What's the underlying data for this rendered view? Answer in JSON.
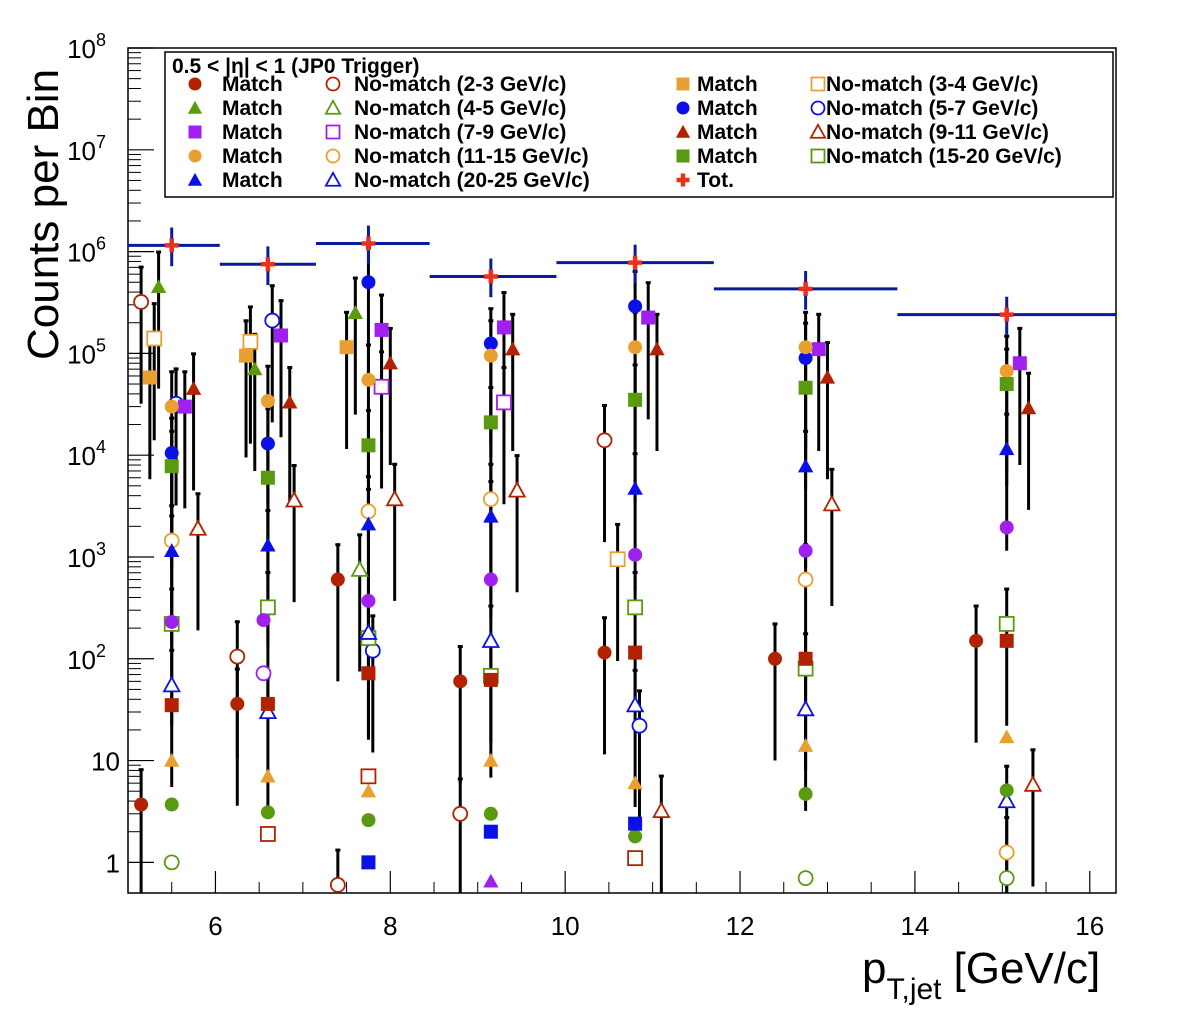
{
  "chart_data": {
    "type": "scatter",
    "title": "0.5 < |η| < 1 (JP0 Trigger)",
    "xlabel": "p",
    "xlabel_sub": "T,jet",
    "xlabel_unit": "[GeV/c]",
    "ylabel": "Counts per Bin",
    "xlim": [
      5.0,
      16.3
    ],
    "ylim": [
      0.5,
      100000000
    ],
    "log_y": true,
    "grid": false,
    "legend_position": "top",
    "x_ticks": [
      6,
      8,
      10,
      12,
      14,
      16
    ],
    "y_ticks": [
      {
        "value": 1,
        "base": "1",
        "exp": ""
      },
      {
        "value": 10,
        "base": "10",
        "exp": ""
      },
      {
        "value": 100,
        "base": "10",
        "exp": "2"
      },
      {
        "value": 1000,
        "base": "10",
        "exp": "3"
      },
      {
        "value": 10000,
        "base": "10",
        "exp": "4"
      },
      {
        "value": 100000,
        "base": "10",
        "exp": "5"
      },
      {
        "value": 1000000,
        "base": "10",
        "exp": "6"
      },
      {
        "value": 10000000,
        "base": "10",
        "exp": "7"
      },
      {
        "value": 100000000,
        "base": "10",
        "exp": "8"
      }
    ],
    "bin_centers": [
      5.5,
      6.6,
      7.75,
      9.15,
      10.8,
      12.75,
      15.05
    ],
    "bin_edges": [
      [
        5.0,
        6.05
      ],
      [
        6.05,
        7.15
      ],
      [
        7.15,
        8.45
      ],
      [
        8.45,
        9.9
      ],
      [
        9.9,
        11.7
      ],
      [
        11.7,
        13.8
      ],
      [
        13.8,
        16.3
      ]
    ],
    "series": [
      {
        "name": "Match",
        "range": "2-3",
        "color": "#b22200",
        "marker": "circle",
        "filled": true,
        "offset": -0.35,
        "values": [
          3.7,
          36,
          600,
          60,
          115,
          100,
          150
        ]
      },
      {
        "name": "No-match (2-3 GeV/c)",
        "color": "#b22200",
        "marker": "circle",
        "filled": false,
        "offset": -0.35,
        "values": [
          320000,
          105,
          0.6,
          3,
          14000,
          0,
          0
        ]
      },
      {
        "name": "Match",
        "range": "3-4",
        "color": "#e8a030",
        "marker": "square",
        "filled": true,
        "offset": -0.25,
        "values": [
          58000,
          95000,
          115000,
          0,
          0,
          0,
          0
        ]
      },
      {
        "name": "No-match (3-4 GeV/c)",
        "color": "#e8a030",
        "marker": "square",
        "filled": false,
        "offset": -0.2,
        "values": [
          140000,
          130000,
          0,
          0,
          950,
          0,
          0
        ]
      },
      {
        "name": "Match",
        "range": "4-5",
        "color": "#5a9a10",
        "marker": "triangle",
        "filled": true,
        "offset": -0.15,
        "values": [
          450000,
          70000,
          250000,
          0,
          0,
          0,
          0
        ]
      },
      {
        "name": "No-match (4-5 GeV/c)",
        "color": "#5a9a10",
        "marker": "triangle",
        "filled": false,
        "offset": -0.1,
        "values": [
          0,
          0,
          750,
          0,
          0,
          0,
          0
        ]
      },
      {
        "name": "Match",
        "range": "5-7",
        "color": "#0a10e8",
        "marker": "circle",
        "filled": true,
        "offset": 0.0,
        "values": [
          10500,
          13000,
          500000,
          125000,
          290000,
          90000,
          0
        ]
      },
      {
        "name": "No-match (5-7 GeV/c)",
        "color": "#0a10e8",
        "marker": "circle",
        "filled": false,
        "offset": 0.05,
        "values": [
          32000,
          210000,
          120,
          0,
          22,
          0,
          0
        ]
      },
      {
        "name": "Match",
        "range": "7-9",
        "color": "#a020f0",
        "marker": "square",
        "filled": true,
        "offset": 0.15,
        "values": [
          30000,
          150000,
          170000,
          180000,
          225000,
          110000,
          80000
        ]
      },
      {
        "name": "No-match (7-9 GeV/c)",
        "color": "#a020f0",
        "marker": "square",
        "filled": false,
        "offset": 0.15,
        "values": [
          0,
          0,
          47000,
          33000,
          0,
          0,
          0
        ]
      },
      {
        "name": "Match",
        "range": "9-11",
        "color": "#b22200",
        "marker": "triangle",
        "filled": true,
        "offset": 0.25,
        "values": [
          45000,
          33000,
          80000,
          110000,
          110000,
          58000,
          29000
        ]
      },
      {
        "name": "No-match (9-11 GeV/c)",
        "color": "#b22200",
        "marker": "triangle",
        "filled": false,
        "offset": 0.3,
        "values": [
          1900,
          3600,
          3700,
          4500,
          3.2,
          3300,
          5.8
        ]
      },
      {
        "name": "Match",
        "range": "11-15",
        "color": "#e8a030",
        "marker": "circle",
        "filled": true,
        "offset": 0.0,
        "values": [
          30000,
          34000,
          55000,
          95000,
          115000,
          115000,
          67000
        ]
      },
      {
        "name": "No-match (11-15 GeV/c)",
        "color": "#e8a030",
        "marker": "circle",
        "filled": false,
        "offset": 0.0,
        "values": [
          1450,
          0,
          2800,
          3700,
          0,
          600,
          1.25
        ]
      },
      {
        "name": "Match",
        "range": "15-20",
        "color": "#5a9a10",
        "marker": "square",
        "filled": true,
        "offset": 0.0,
        "values": [
          7800,
          6000,
          12500,
          21000,
          35000,
          46000,
          50000
        ]
      },
      {
        "name": "No-match (15-20 GeV/c)",
        "color": "#5a9a10",
        "marker": "square",
        "filled": false,
        "offset": 0.0,
        "values": [
          220,
          320,
          160,
          68,
          320,
          80,
          220
        ]
      },
      {
        "name": "Match",
        "range": "20-25",
        "color": "#0a10e8",
        "marker": "triangle",
        "filled": true,
        "offset": 0.0,
        "values": [
          1150,
          1300,
          2100,
          2500,
          4700,
          7800,
          11500
        ]
      },
      {
        "name": "No-match (20-25 GeV/c)",
        "color": "#0a10e8",
        "marker": "triangle",
        "filled": false,
        "offset": 0.0,
        "values": [
          55,
          30,
          180,
          150,
          35,
          32,
          4
        ]
      },
      {
        "name": "Tot.",
        "color": "#e8301a",
        "marker": "cross",
        "filled": true,
        "offset": 0.0,
        "values": [
          1150000,
          750000,
          1200000,
          570000,
          780000,
          430000,
          240000
        ]
      }
    ],
    "extra_points": [
      {
        "color": "#a020f0",
        "marker": "circle",
        "filled": true,
        "x": [
          5.5,
          6.55,
          7.75,
          9.15,
          10.8,
          12.75,
          15.05
        ],
        "values": [
          230,
          240,
          370,
          600,
          1050,
          1150,
          1950
        ]
      },
      {
        "color": "#a020f0",
        "marker": "circle",
        "filled": false,
        "x": [
          6.55
        ],
        "values": [
          72
        ]
      },
      {
        "color": "#e8a030",
        "marker": "triangle",
        "filled": true,
        "x": [
          5.5,
          6.6,
          7.75,
          9.15,
          10.8,
          12.75,
          15.05
        ],
        "values": [
          10,
          7,
          5,
          10,
          6,
          14,
          17
        ]
      },
      {
        "color": "#5a9a10",
        "marker": "circle",
        "filled": true,
        "x": [
          5.5,
          6.6,
          7.75,
          9.15,
          10.8,
          12.75,
          15.05
        ],
        "values": [
          3.7,
          3.1,
          2.6,
          3.0,
          1.8,
          4.7,
          5.1
        ]
      },
      {
        "color": "#5a9a10",
        "marker": "circle",
        "filled": false,
        "x": [
          5.5,
          12.75,
          15.05
        ],
        "values": [
          1.0,
          0.7,
          0.7
        ]
      },
      {
        "color": "#b22200",
        "marker": "square",
        "filled": false,
        "x": [
          6.6,
          7.75,
          10.8
        ],
        "values": [
          1.9,
          7,
          1.1
        ]
      },
      {
        "color": "#0a10e8",
        "marker": "square",
        "filled": true,
        "x": [
          7.75,
          9.15,
          10.8
        ],
        "values": [
          1.0,
          2.0,
          2.4
        ]
      },
      {
        "color": "#a020f0",
        "marker": "triangle",
        "filled": true,
        "x": [
          9.15
        ],
        "values": [
          0.65
        ]
      },
      {
        "color": "#b22200",
        "marker": "square",
        "filled": true,
        "x": [
          5.5,
          6.6,
          7.75,
          9.15,
          10.8,
          12.75,
          15.05
        ],
        "values": [
          35,
          36,
          72,
          62,
          115,
          100,
          150
        ]
      }
    ],
    "legend": [
      [
        {
          "color": "#b22200",
          "marker": "circle",
          "filled": true,
          "label": "Match"
        },
        {
          "color": "#b22200",
          "marker": "circle",
          "filled": false,
          "label": "No-match (2-3 GeV/c)"
        },
        {
          "color": "#e8a030",
          "marker": "square",
          "filled": true,
          "label": "Match"
        },
        {
          "color": "#e8a030",
          "marker": "square",
          "filled": false,
          "label": "No-match (3-4 GeV/c)"
        }
      ],
      [
        {
          "color": "#5a9a10",
          "marker": "triangle",
          "filled": true,
          "label": "Match"
        },
        {
          "color": "#5a9a10",
          "marker": "triangle",
          "filled": false,
          "label": "No-match (4-5 GeV/c)"
        },
        {
          "color": "#0a10e8",
          "marker": "circle",
          "filled": true,
          "label": "Match"
        },
        {
          "color": "#0a10e8",
          "marker": "circle",
          "filled": false,
          "label": "No-match (5-7 GeV/c)"
        }
      ],
      [
        {
          "color": "#a020f0",
          "marker": "square",
          "filled": true,
          "label": "Match"
        },
        {
          "color": "#a020f0",
          "marker": "square",
          "filled": false,
          "label": "No-match (7-9 GeV/c)"
        },
        {
          "color": "#b22200",
          "marker": "triangle",
          "filled": true,
          "label": "Match"
        },
        {
          "color": "#b22200",
          "marker": "triangle",
          "filled": false,
          "label": "No-match (9-11 GeV/c)"
        }
      ],
      [
        {
          "color": "#e8a030",
          "marker": "circle",
          "filled": true,
          "label": "Match"
        },
        {
          "color": "#e8a030",
          "marker": "circle",
          "filled": false,
          "label": "No-match (11-15 GeV/c)"
        },
        {
          "color": "#5a9a10",
          "marker": "square",
          "filled": true,
          "label": "Match"
        },
        {
          "color": "#5a9a10",
          "marker": "square",
          "filled": false,
          "label": "No-match (15-20 GeV/c)"
        }
      ],
      [
        {
          "color": "#0a10e8",
          "marker": "triangle",
          "filled": true,
          "label": "Match"
        },
        {
          "color": "#0a10e8",
          "marker": "triangle",
          "filled": false,
          "label": "No-match (20-25 GeV/c)"
        },
        {
          "color": "#e8301a",
          "marker": "cross",
          "filled": true,
          "label": "Tot."
        }
      ]
    ],
    "total_bar_color": "#0a1a9a"
  }
}
